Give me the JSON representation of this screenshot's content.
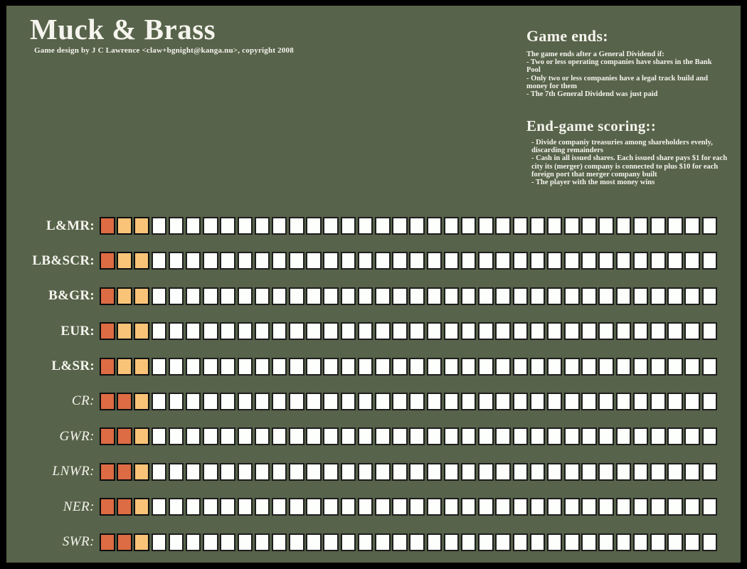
{
  "title": "Muck & Brass",
  "subtitle": "Game design by J C Lawrence <claw+bgnight@kanga.nu>, copyright 2008",
  "game_ends": {
    "heading": "Game ends:",
    "intro": "The game ends after a General Dividend if:",
    "bullets": [
      "- Two or less operating companies have shares in the Bank Pool",
      "- Only two or less companies have a legal track build and money for them",
      "- The 7th General Dividend was just paid"
    ]
  },
  "end_game_scoring": {
    "heading": "End-game scoring::",
    "bullets": [
      "- Divide companiy treasuries among shareholders evenly, discarding remainders",
      "- Cash in all issued shares.  Each issued share pays $1 for each city its (merger) company is connected to plus $10 for each foreign port that merger company built",
      "- The player with the most money wins"
    ]
  },
  "colors": {
    "background": "#57634a",
    "frame": "#000000",
    "track_red": "#dd6b43",
    "track_orange": "#f9c378",
    "track_empty": "#fdfffd",
    "square_border": "#161616",
    "text": "#f5f4ee"
  },
  "tracks": {
    "squares_per_row": 36,
    "rows": [
      {
        "label": "L&MR:",
        "style": "bold",
        "filled": [
          "red",
          "orange",
          "orange"
        ]
      },
      {
        "label": "LB&SCR:",
        "style": "bold",
        "filled": [
          "red",
          "orange",
          "orange"
        ]
      },
      {
        "label": "B&GR:",
        "style": "bold",
        "filled": [
          "red",
          "orange",
          "orange"
        ]
      },
      {
        "label": "EUR:",
        "style": "bold",
        "filled": [
          "red",
          "orange",
          "orange"
        ]
      },
      {
        "label": "L&SR:",
        "style": "bold",
        "filled": [
          "red",
          "orange",
          "orange"
        ]
      },
      {
        "label": "CR:",
        "style": "italic",
        "filled": [
          "red",
          "red",
          "orange"
        ]
      },
      {
        "label": "GWR:",
        "style": "italic",
        "filled": [
          "red",
          "red",
          "orange"
        ]
      },
      {
        "label": "LNWR:",
        "style": "italic",
        "filled": [
          "red",
          "red",
          "orange"
        ]
      },
      {
        "label": "NER:",
        "style": "italic",
        "filled": [
          "red",
          "red",
          "orange"
        ]
      },
      {
        "label": "SWR:",
        "style": "italic",
        "filled": [
          "red",
          "red",
          "orange"
        ]
      }
    ]
  }
}
